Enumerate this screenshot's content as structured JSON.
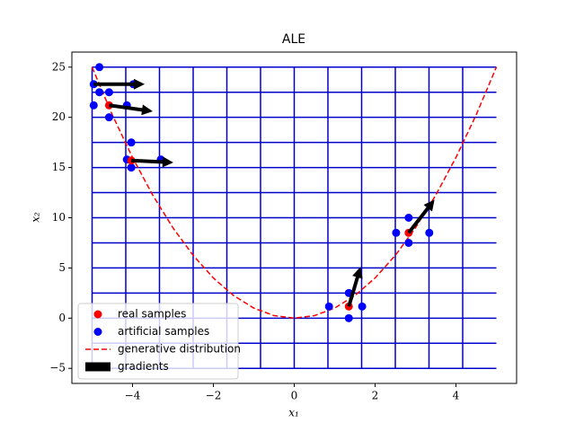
{
  "chart_data": {
    "type": "scatter",
    "title": "ALE",
    "xlabel": "x₁",
    "ylabel": "x₂",
    "xlim": [
      -5.5,
      5.5
    ],
    "ylim": [
      -6.5,
      26.5
    ],
    "xticks": [
      {
        "value": -4,
        "label": "−4"
      },
      {
        "value": -2,
        "label": "−2"
      },
      0,
      2,
      4
    ],
    "yticks": [
      {
        "value": -5,
        "label": "−5"
      },
      0,
      5,
      10,
      15,
      20,
      25
    ],
    "vlines": {
      "color": "#0000cc",
      "ymin": -5,
      "ymax": 25,
      "x": [
        -5,
        -4.1667,
        -3.3333,
        -2.5,
        -1.6667,
        -0.8333,
        0,
        0.8333,
        1.6667,
        2.5,
        3.3333,
        4.1667
      ]
    },
    "hlines": {
      "color": "#0000cc",
      "xmin": -5,
      "xmax": 5,
      "y": [
        25,
        22.5,
        20,
        17.5,
        15,
        12.5,
        10,
        7.5,
        5,
        2.5,
        0,
        -2.5,
        -5
      ]
    },
    "series": [
      {
        "name": "generative distribution",
        "kind": "line",
        "color": "#ff0000",
        "x": [
          -5,
          -4.5,
          -4,
          -3.5,
          -3,
          -2.5,
          -2,
          -1.5,
          -1,
          -0.5,
          0,
          0.5,
          1,
          1.5,
          2,
          2.5,
          3,
          3.5,
          4,
          4.5,
          5
        ],
        "values": [
          25,
          20.25,
          16,
          12.25,
          9,
          6.25,
          4,
          2.25,
          1,
          0.25,
          0,
          0.25,
          1,
          2.25,
          4,
          6.25,
          9,
          12.25,
          16,
          20.25,
          25
        ]
      },
      {
        "name": "artificial samples",
        "kind": "points",
        "color": "#0000ff",
        "x": [
          -4.82,
          -4.96,
          -4.82,
          -3.98,
          -4.96,
          -4.14,
          -4.58,
          -4.58,
          -4.14,
          -3.3,
          -4.03,
          -4.03,
          0.86,
          1.68,
          1.35,
          1.35,
          2.52,
          3.34,
          2.83,
          2.83
        ],
        "values": [
          25,
          23.3,
          22.5,
          23.3,
          21.2,
          21.2,
          20,
          22.5,
          15.8,
          15.8,
          17.5,
          15,
          1.16,
          1.16,
          2.5,
          0,
          8.5,
          8.5,
          10,
          7.5
        ]
      },
      {
        "name": "real samples",
        "kind": "points",
        "color": "#ff0000",
        "x": [
          -4.58,
          -4.03,
          1.35,
          2.83
        ],
        "values": [
          21.2,
          15.7,
          1.16,
          8.5
        ]
      },
      {
        "name": "gradients",
        "kind": "arrows",
        "color": "#000000",
        "x": [
          -4.96,
          -4.58,
          -4.03,
          1.35,
          2.83
        ],
        "values": [
          23.3,
          21.2,
          15.7,
          1.16,
          8.5
        ],
        "x_end": [
          -3.7,
          -3.5,
          -2.99,
          1.64,
          3.47
        ],
        "y_end": [
          23.3,
          20.6,
          15.5,
          5.1,
          11.8
        ]
      }
    ],
    "legend": "lower left"
  }
}
